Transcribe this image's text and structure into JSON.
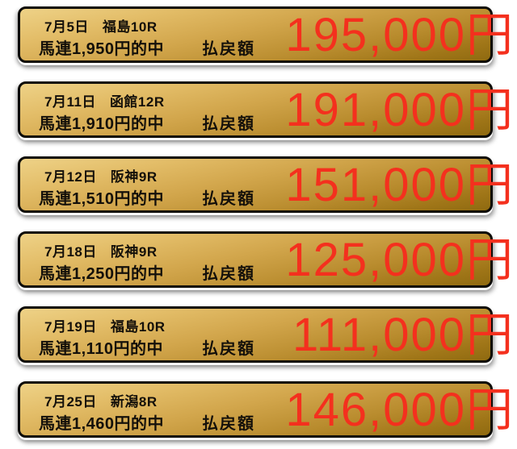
{
  "page": {
    "background_color": "#ffffff"
  },
  "colors": {
    "banner_gold_light": "#EED287",
    "banner_gold_dark": "#8F6A10",
    "banner_border": "#0C0B08",
    "amount_red": "#F4301E",
    "text_dark": "#14100A"
  },
  "banners": [
    {
      "date": "7月5日",
      "race": "福島10R",
      "hit": "馬連1,950円的中",
      "payout_label": "払戻額",
      "amount": "195,000円"
    },
    {
      "date": "7月11日",
      "race": "函館12R",
      "hit": "馬連1,910円的中",
      "payout_label": "払戻額",
      "amount": "191,000円"
    },
    {
      "date": "7月12日",
      "race": "阪神9R",
      "hit": "馬連1,510円的中",
      "payout_label": "払戻額",
      "amount": "151,000円"
    },
    {
      "date": "7月18日",
      "race": "阪神9R",
      "hit": "馬連1,250円的中",
      "payout_label": "払戻額",
      "amount": "125,000円"
    },
    {
      "date": "7月19日",
      "race": "福島10R",
      "hit": "馬連1,110円的中",
      "payout_label": "払戻額",
      "amount": "111,000円"
    },
    {
      "date": "7月25日",
      "race": "新潟8R",
      "hit": "馬連1,460円的中",
      "payout_label": "払戻額",
      "amount": "146,000円"
    }
  ]
}
